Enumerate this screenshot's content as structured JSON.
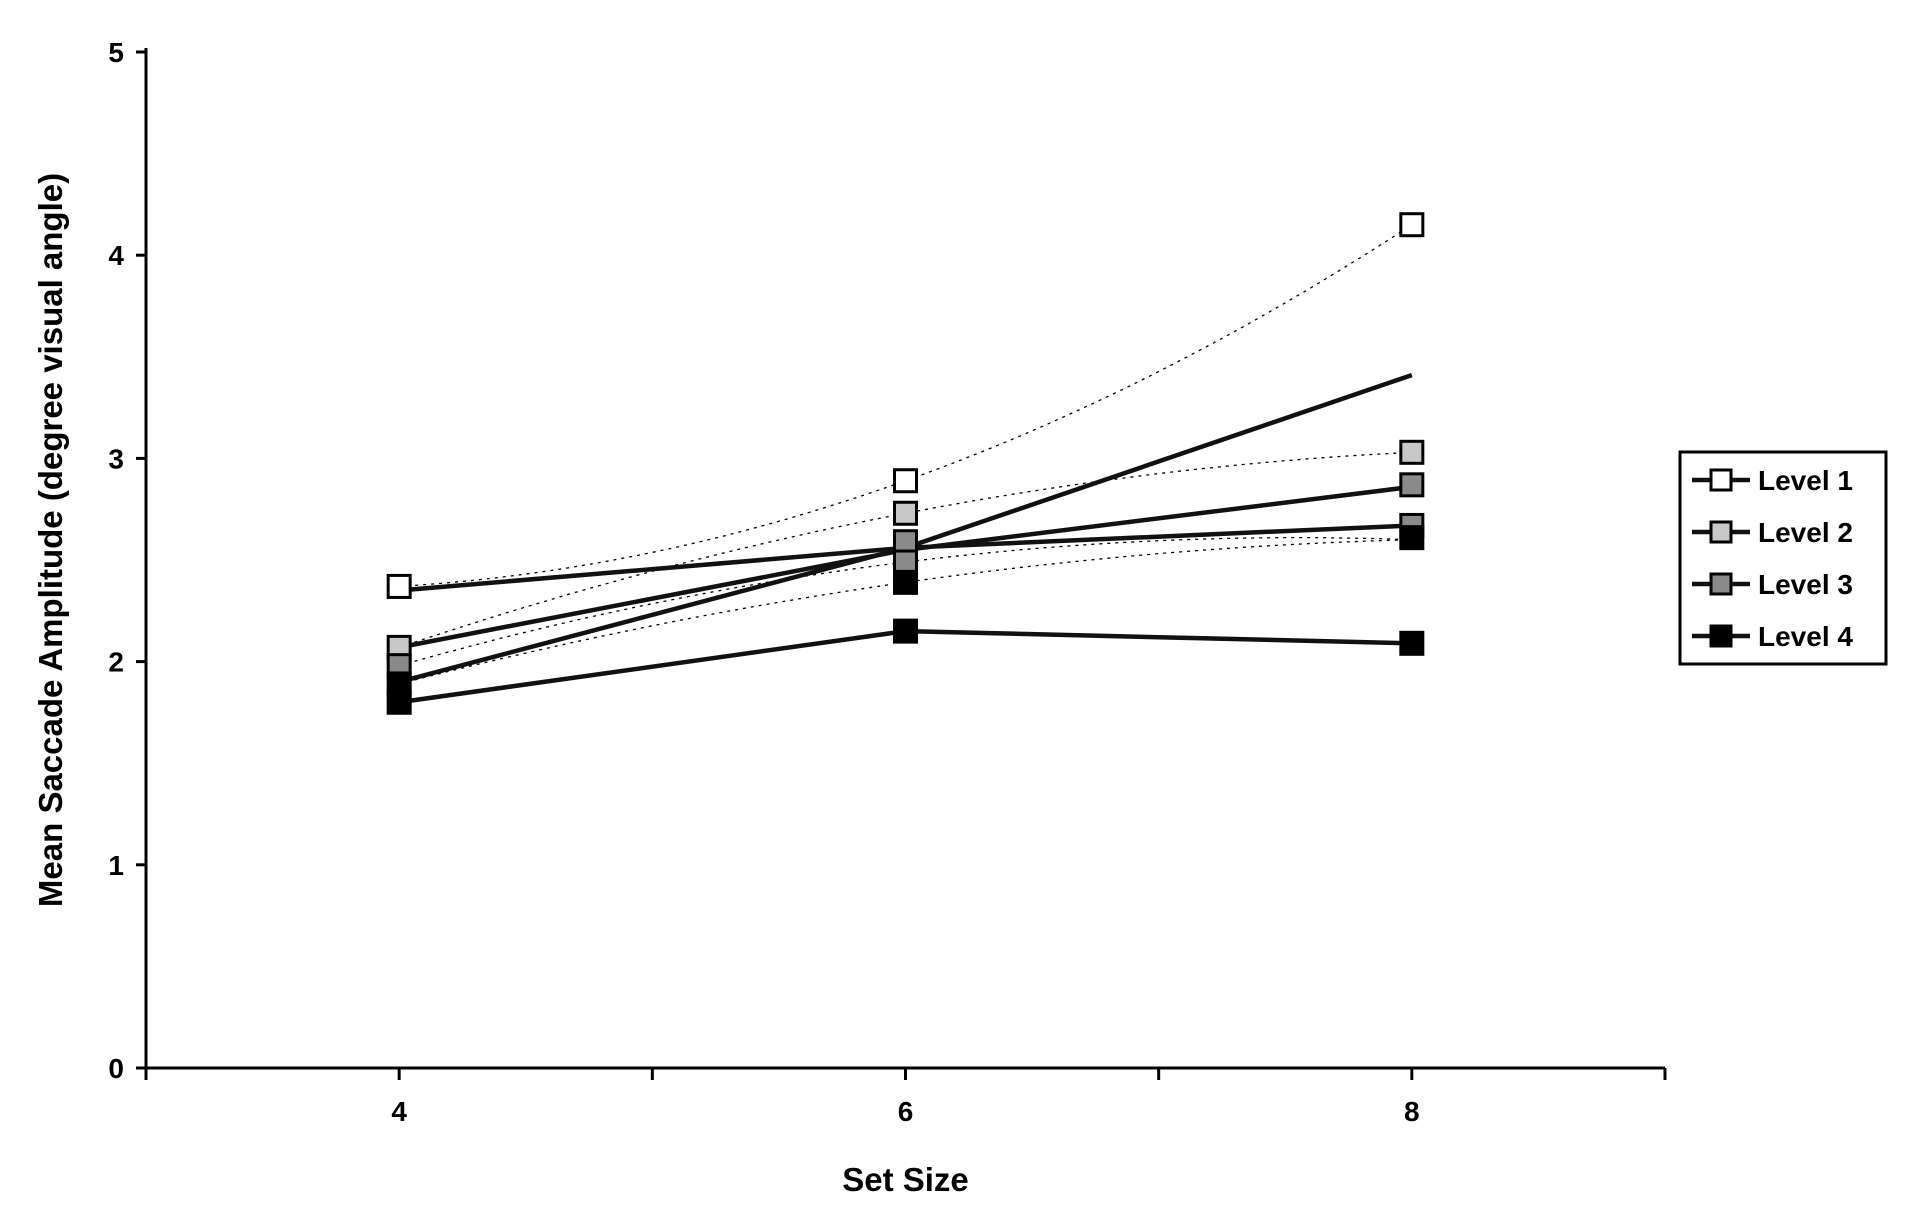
{
  "chart_data": {
    "type": "line",
    "title": "",
    "xlabel": "Set Size",
    "ylabel": "Mean Saccade Amplitude (degree visual angle)",
    "xlim": [
      3,
      9
    ],
    "ylim": [
      0,
      5
    ],
    "x_ticks": [
      4,
      6,
      8
    ],
    "x_tick_labels": [
      "4",
      "6",
      "8"
    ],
    "y_ticks": [
      0,
      1,
      2,
      3,
      4,
      5
    ],
    "y_tick_labels": [
      "0",
      "1",
      "2",
      "3",
      "4",
      "5"
    ],
    "grid": false,
    "legend_position": "right",
    "x": [
      4,
      6,
      8
    ],
    "series": [
      {
        "name": "Level 1",
        "marker_fill": "#ffffff",
        "values": [
          2.37,
          2.89,
          4.15
        ],
        "fit_values": [
          2.35,
          2.56,
          3.41
        ]
      },
      {
        "name": "Level 2",
        "marker_fill": "#c8c8c8",
        "values": [
          2.07,
          2.73,
          3.03
        ],
        "fit_values": [
          2.07,
          2.55,
          2.86
        ]
      },
      {
        "name": "Level 3",
        "marker_fill": "#8a8a8a",
        "values": [
          1.98,
          2.59,
          2.87
        ],
        "fit_values": [
          1.9,
          2.56,
          2.67
        ]
      },
      {
        "name": "Level 4",
        "marker_fill": "#000000",
        "values": [
          1.8,
          2.15,
          2.09
        ],
        "fit_values": [
          1.8,
          2.15,
          2.09
        ]
      }
    ],
    "extra_points": [
      {
        "series": "Level 3",
        "x": 6,
        "y": 2.49
      },
      {
        "series": "Level 4",
        "x": 6,
        "y": 2.39
      },
      {
        "series": "Level 4",
        "x": 4,
        "y": 1.89
      },
      {
        "series": "Level 3",
        "x": 8,
        "y": 2.67
      },
      {
        "series": "Level 4",
        "x": 8,
        "y": 2.61
      }
    ],
    "curves": [
      {
        "values": [
          2.37,
          2.89,
          4.15
        ]
      },
      {
        "values": [
          2.07,
          2.73,
          3.03
        ]
      },
      {
        "values": [
          1.98,
          2.49,
          2.6
        ]
      },
      {
        "values": [
          1.89,
          2.39,
          2.6
        ]
      }
    ]
  }
}
